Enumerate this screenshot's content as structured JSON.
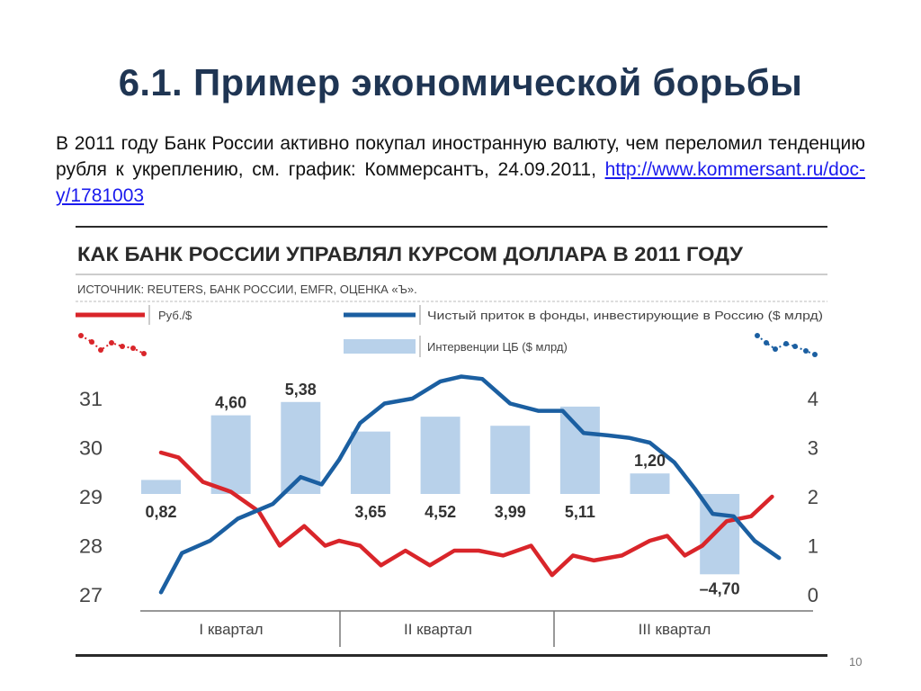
{
  "slide": {
    "title": "6.1. Пример экономической борьбы",
    "text": "В 2011 году Банк России активно покупал иностранную валюту, чем переломил тенденцию рубля к укреплению, см. график: Коммерсантъ, 24.09.2011, ",
    "link": "http://www.kommersant.ru/doc-y/1781003",
    "page_number": "10"
  },
  "colors": {
    "title": "#1f3553",
    "ruble_line": "#d9252a",
    "fund_line": "#1b5fa1",
    "intervention_bar": "#b8d1ea",
    "link": "#1a1aee"
  },
  "chart_data": {
    "type": "line",
    "title": "КАК БАНК РОССИИ УПРАВЛЯЛ КУРСОМ ДОЛЛАРА В 2011 ГОДУ",
    "source": "ИСТОЧНИК: REUTERS, БАНК РОССИИ, EMFR, ОЦЕНКА «Ъ».",
    "legend": {
      "ruble": "Руб./$",
      "funds": "Чистый приток в фонды, инвестирующие в Россию ($ млрд)",
      "interventions": "Интервенции ЦБ ($ млрд)"
    },
    "quarters": [
      "I квартал",
      "II квартал",
      "III квартал"
    ],
    "left_axis": {
      "ticks": [
        "31",
        "30",
        "29",
        "28",
        "27"
      ],
      "ylim": [
        27,
        31
      ]
    },
    "right_axis": {
      "ticks": [
        "4",
        "3",
        "2",
        "1",
        "0"
      ],
      "ylim": [
        0,
        4
      ]
    },
    "interventions": [
      {
        "label": "0,82",
        "value": 0.82
      },
      {
        "label": "4,60",
        "value": 4.6
      },
      {
        "label": "5,38",
        "value": 5.38
      },
      {
        "label": "3,65",
        "value": 3.65
      },
      {
        "label": "4,52",
        "value": 4.52
      },
      {
        "label": "3,99",
        "value": 3.99
      },
      {
        "label": "5,11",
        "value": 5.11
      },
      {
        "label": "1,20",
        "value": 1.2
      },
      {
        "label": "–4,70",
        "value": -4.7
      }
    ],
    "series": [
      {
        "name": "Руб./$",
        "axis": "left",
        "color": "#d9252a",
        "x": [
          0.0,
          0.25,
          0.6,
          1.0,
          1.4,
          1.7,
          2.05,
          2.35,
          2.55,
          2.85,
          3.15,
          3.5,
          3.85,
          4.2,
          4.55,
          4.9,
          5.3,
          5.6,
          5.9,
          6.2,
          6.6,
          7.0,
          7.25,
          7.5,
          7.75,
          8.1,
          8.45,
          8.75
        ],
        "values": [
          29.9,
          29.8,
          29.3,
          29.1,
          28.7,
          28.0,
          28.4,
          28.0,
          28.1,
          28.0,
          27.6,
          27.9,
          27.6,
          27.9,
          27.9,
          27.8,
          28.0,
          27.4,
          27.8,
          27.7,
          27.8,
          28.1,
          28.2,
          27.8,
          28.0,
          28.5,
          28.6,
          29.0
        ]
      },
      {
        "name": "Чистый приток в фонды, инвестирующие в Россию ($ млрд)",
        "axis": "right",
        "color": "#1b5fa1",
        "x": [
          0.0,
          0.3,
          0.7,
          1.1,
          1.6,
          2.0,
          2.3,
          2.55,
          2.85,
          3.2,
          3.6,
          4.0,
          4.3,
          4.6,
          5.0,
          5.4,
          5.75,
          6.05,
          6.4,
          6.7,
          7.0,
          7.35,
          7.65,
          7.9,
          8.2,
          8.5,
          8.85
        ],
        "values": [
          0.05,
          0.85,
          1.1,
          1.55,
          1.85,
          2.4,
          2.25,
          2.75,
          3.5,
          3.9,
          4.0,
          4.35,
          4.45,
          4.4,
          3.9,
          3.75,
          3.75,
          3.3,
          3.25,
          3.2,
          3.1,
          2.7,
          2.15,
          1.65,
          1.6,
          1.1,
          0.75
        ]
      }
    ],
    "grid": false,
    "legend_position": "top"
  }
}
